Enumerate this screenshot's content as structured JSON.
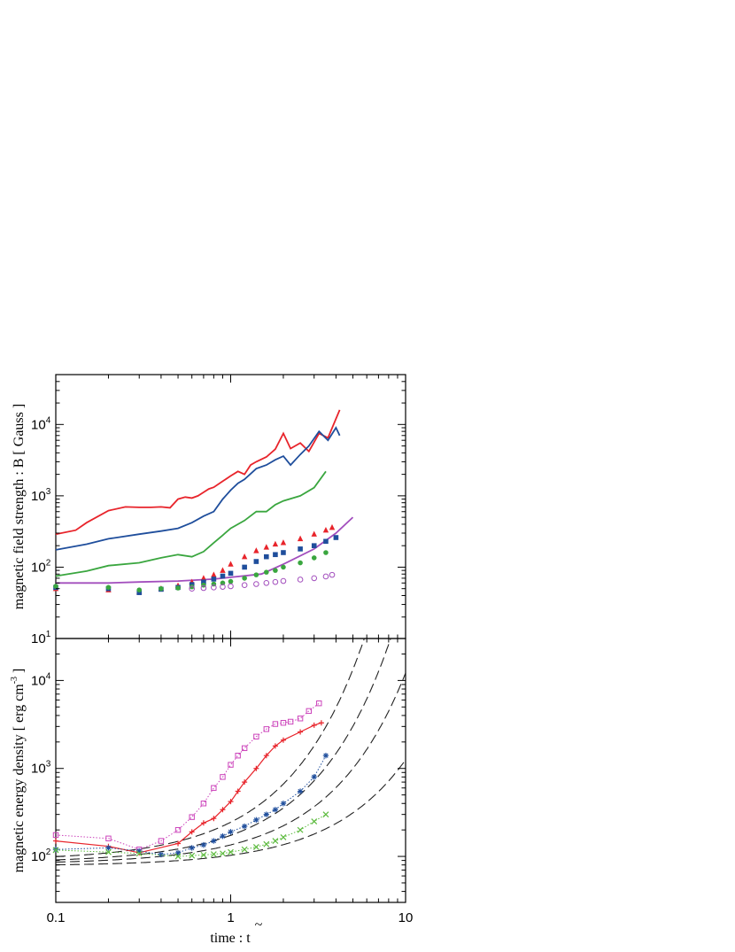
{
  "chart_data": [
    {
      "type": "line",
      "panel": "top",
      "ylabel": "magnetic field strength : B [ Gauss ]",
      "xscale": "log",
      "yscale": "log",
      "xlim": [
        0.1,
        10
      ],
      "ylim": [
        10,
        50000
      ],
      "y_tick_labels": [
        {
          "base": "10",
          "exp": "1",
          "value": 10
        },
        {
          "base": "10",
          "exp": "2",
          "value": 100
        },
        {
          "base": "10",
          "exp": "3",
          "value": 1000
        },
        {
          "base": "10",
          "exp": "4",
          "value": 10000
        }
      ],
      "series": [
        {
          "style": "line",
          "color": "#e8242b",
          "x": [
            0.1,
            0.13,
            0.15,
            0.2,
            0.25,
            0.3,
            0.35,
            0.4,
            0.45,
            0.5,
            0.55,
            0.6,
            0.65,
            0.7,
            0.75,
            0.8,
            0.9,
            1.0,
            1.1,
            1.2,
            1.3,
            1.4,
            1.6,
            1.8,
            2.0,
            2.2,
            2.5,
            2.8,
            3.2,
            3.6,
            4.0,
            4.2
          ],
          "y": [
            290,
            330,
            420,
            620,
            700,
            690,
            690,
            700,
            680,
            900,
            960,
            930,
            1000,
            1120,
            1250,
            1320,
            1600,
            1900,
            2200,
            2000,
            2700,
            3000,
            3500,
            4500,
            7500,
            4600,
            5500,
            4200,
            7500,
            6500,
            12000,
            16000
          ]
        },
        {
          "style": "line",
          "color": "#1f4e9c",
          "x": [
            0.1,
            0.15,
            0.2,
            0.3,
            0.4,
            0.5,
            0.6,
            0.7,
            0.8,
            0.9,
            1.0,
            1.1,
            1.2,
            1.4,
            1.6,
            1.8,
            2.0,
            2.2,
            2.5,
            2.8,
            3.2,
            3.6,
            4.0,
            4.2
          ],
          "y": [
            175,
            210,
            250,
            290,
            320,
            350,
            420,
            520,
            600,
            900,
            1200,
            1500,
            1700,
            2400,
            2700,
            3200,
            3600,
            2700,
            3800,
            5000,
            8000,
            6000,
            9000,
            7000
          ]
        },
        {
          "style": "line",
          "color": "#3aa63f",
          "x": [
            0.1,
            0.15,
            0.2,
            0.3,
            0.4,
            0.5,
            0.6,
            0.7,
            0.8,
            0.9,
            1.0,
            1.2,
            1.4,
            1.6,
            1.8,
            2.0,
            2.5,
            3.0,
            3.5
          ],
          "y": [
            75,
            88,
            105,
            115,
            135,
            150,
            140,
            165,
            220,
            280,
            350,
            450,
            600,
            600,
            750,
            850,
            1000,
            1300,
            2200
          ]
        },
        {
          "style": "line",
          "color": "#a24ebd",
          "x": [
            0.1,
            0.2,
            0.3,
            0.5,
            0.8,
            1.0,
            1.5,
            2.0,
            3.0,
            4.0,
            5.0
          ],
          "y": [
            60,
            60,
            62,
            64,
            68,
            72,
            80,
            110,
            180,
            300,
            500
          ]
        },
        {
          "style": "markers",
          "marker": "triangle-filled",
          "color": "#e8242b",
          "x": [
            0.1,
            0.2,
            0.3,
            0.4,
            0.5,
            0.6,
            0.7,
            0.8,
            0.9,
            1.0,
            1.2,
            1.4,
            1.6,
            1.8,
            2.0,
            2.5,
            3.0,
            3.5,
            3.8
          ],
          "y": [
            50,
            48,
            45,
            50,
            55,
            62,
            70,
            78,
            90,
            110,
            140,
            170,
            190,
            210,
            220,
            250,
            290,
            330,
            360
          ]
        },
        {
          "style": "markers",
          "marker": "square-filled",
          "color": "#1f4e9c",
          "x": [
            0.1,
            0.2,
            0.3,
            0.4,
            0.5,
            0.6,
            0.7,
            0.8,
            0.9,
            1.0,
            1.2,
            1.4,
            1.6,
            1.8,
            2.0,
            2.5,
            3.0,
            3.5,
            4.0
          ],
          "y": [
            52,
            50,
            44,
            49,
            52,
            57,
            62,
            68,
            75,
            82,
            100,
            120,
            140,
            150,
            160,
            180,
            200,
            230,
            260
          ]
        },
        {
          "style": "markers",
          "marker": "circle-filled",
          "color": "#3aa63f",
          "x": [
            0.1,
            0.2,
            0.3,
            0.4,
            0.5,
            0.6,
            0.7,
            0.8,
            0.9,
            1.0,
            1.2,
            1.4,
            1.6,
            1.8,
            2.0,
            2.5,
            3.0,
            3.5
          ],
          "y": [
            54,
            52,
            48,
            50,
            51,
            53,
            56,
            58,
            60,
            63,
            70,
            78,
            85,
            90,
            100,
            115,
            135,
            160
          ]
        },
        {
          "style": "markers",
          "marker": "circle-open",
          "color": "#a24ebd",
          "x": [
            0.6,
            0.7,
            0.8,
            0.9,
            1.0,
            1.2,
            1.4,
            1.6,
            1.8,
            2.0,
            2.5,
            3.0,
            3.5,
            3.8
          ],
          "y": [
            50,
            51,
            52,
            53,
            54,
            56,
            58,
            60,
            62,
            64,
            67,
            70,
            74,
            78
          ]
        }
      ]
    },
    {
      "type": "line",
      "panel": "bottom",
      "xlabel": "time : t",
      "xlabel_accent": "~",
      "ylabel": "magnetic energy density [ erg cm",
      "ylabel_sup": "-3",
      "ylabel_end": " ]",
      "xscale": "log",
      "yscale": "log",
      "xlim": [
        0.1,
        10
      ],
      "ylim": [
        30,
        30000
      ],
      "x_tick_labels": [
        {
          "text": "0.1",
          "value": 0.1
        },
        {
          "text": "1",
          "value": 1
        },
        {
          "text": "10",
          "value": 10
        }
      ],
      "y_tick_labels": [
        {
          "base": "10",
          "exp": "2",
          "value": 100
        },
        {
          "base": "10",
          "exp": "3",
          "value": 1000
        },
        {
          "base": "10",
          "exp": "4",
          "value": 10000
        }
      ],
      "dashed_curves": [
        {
          "y0": 90,
          "tau": 1.0
        },
        {
          "y0": 85,
          "tau": 1.4
        },
        {
          "y0": 82,
          "tau": 2.0
        },
        {
          "y0": 78,
          "tau": 3.6
        }
      ],
      "series": [
        {
          "style": "dotted",
          "marker": "square-open",
          "color": "#cc44bb",
          "x": [
            0.1,
            0.2,
            0.3,
            0.4,
            0.5,
            0.6,
            0.7,
            0.8,
            0.9,
            1.0,
            1.1,
            1.2,
            1.4,
            1.6,
            1.8,
            2.0,
            2.2,
            2.5,
            2.8,
            3.2
          ],
          "y": [
            175,
            160,
            120,
            150,
            200,
            280,
            400,
            600,
            800,
            1100,
            1400,
            1700,
            2300,
            2800,
            3200,
            3300,
            3400,
            3700,
            4500,
            5500
          ]
        },
        {
          "style": "solid",
          "marker": "plus",
          "color": "#e8242b",
          "x": [
            0.1,
            0.2,
            0.3,
            0.5,
            0.6,
            0.7,
            0.8,
            0.9,
            1.0,
            1.1,
            1.2,
            1.4,
            1.6,
            1.8,
            2.0,
            2.5,
            3.0,
            3.3
          ],
          "y": [
            150,
            130,
            110,
            140,
            190,
            240,
            270,
            340,
            420,
            550,
            700,
            1000,
            1400,
            1800,
            2100,
            2600,
            3100,
            3300
          ]
        },
        {
          "style": "dotted",
          "marker": "asterisk",
          "color": "#1f4e9c",
          "x": [
            0.1,
            0.2,
            0.3,
            0.4,
            0.5,
            0.6,
            0.7,
            0.8,
            0.9,
            1.0,
            1.2,
            1.4,
            1.6,
            1.8,
            2.0,
            2.5,
            3.0,
            3.5
          ],
          "y": [
            120,
            125,
            115,
            105,
            110,
            125,
            135,
            150,
            170,
            190,
            220,
            260,
            300,
            340,
            400,
            550,
            800,
            1400
          ]
        },
        {
          "style": "dotted",
          "marker": "cross",
          "color": "#5dbb3f",
          "x": [
            0.1,
            0.2,
            0.3,
            0.5,
            0.6,
            0.7,
            0.8,
            0.9,
            1.0,
            1.2,
            1.4,
            1.6,
            1.8,
            2.0,
            2.5,
            3.0,
            3.5
          ],
          "y": [
            118,
            112,
            108,
            100,
            102,
            104,
            106,
            108,
            112,
            120,
            128,
            138,
            150,
            165,
            200,
            250,
            300
          ]
        }
      ]
    }
  ]
}
